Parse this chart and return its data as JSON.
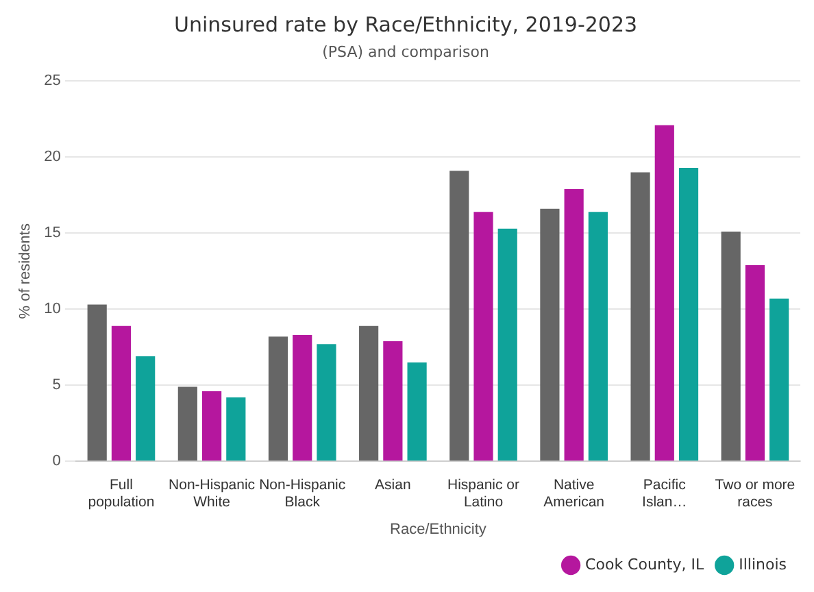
{
  "chart_data": {
    "type": "bar",
    "title": "Uninsured rate by Race/Ethnicity, 2019-2023",
    "subtitle": "(PSA) and comparison",
    "xlabel": "Race/Ethnicity",
    "ylabel": "% of residents",
    "categories": [
      "Full population",
      "Non-Hispanic White",
      "Non-Hispanic Black",
      "Asian",
      "Hispanic or Latino",
      "Native American",
      "Pacific Islan…",
      "Two or more races"
    ],
    "series": [
      {
        "color": "#666666",
        "values": [
          10.3,
          4.9,
          8.2,
          8.9,
          19.1,
          16.6,
          19.0,
          15.1
        ]
      },
      {
        "name": "Cook County, IL",
        "color": "#b5179e",
        "values": [
          8.9,
          4.6,
          8.3,
          7.9,
          16.4,
          17.9,
          22.1,
          12.9
        ]
      },
      {
        "name": "Illinois",
        "color": "#0fa39a",
        "values": [
          6.9,
          4.2,
          7.7,
          6.5,
          15.3,
          16.4,
          19.3,
          10.7
        ]
      }
    ],
    "ylim": [
      0,
      25
    ],
    "yticks": [
      0,
      5,
      10,
      15,
      20,
      25
    ],
    "grid": "y",
    "legend": "bottom right"
  }
}
